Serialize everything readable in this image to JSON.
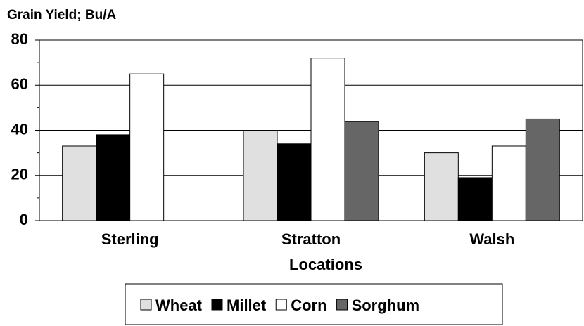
{
  "chart_data": {
    "type": "bar",
    "title": "Grain Yield;  Bu/A",
    "x_label": "Locations",
    "categories": [
      "Sterling",
      "Stratton",
      "Walsh"
    ],
    "series": [
      {
        "name": "Wheat",
        "color": "#e0e0e0",
        "values": [
          33,
          40,
          30
        ]
      },
      {
        "name": "Millet",
        "color": "#000000",
        "values": [
          38,
          34,
          19
        ]
      },
      {
        "name": "Corn",
        "color": "#ffffff",
        "values": [
          65,
          72,
          33
        ]
      },
      {
        "name": "Sorghum",
        "color": "#666666",
        "values": [
          null,
          44,
          45
        ]
      }
    ],
    "ylim": [
      0,
      80
    ],
    "yticks": [
      0,
      20,
      40,
      60,
      80
    ],
    "minor_yticks": [
      10,
      30,
      50,
      70
    ],
    "grid": true,
    "legend": "bottom"
  }
}
